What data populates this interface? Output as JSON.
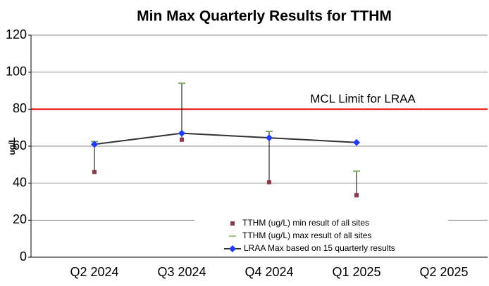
{
  "chart_data": {
    "type": "line",
    "title": "Min Max Quarterly Results for TTHM",
    "y_label": "ug/L",
    "categories": [
      "Q2 2024",
      "Q3 2024",
      "Q4 2024",
      "Q1 2025",
      "Q2 2025"
    ],
    "series": [
      {
        "name": "TTHM (ug/L) min result of all sites",
        "color": "#8b3a4a",
        "values": [
          46,
          63.5,
          40.5,
          33.5,
          null
        ]
      },
      {
        "name": "TTHM (ug/L) max result of all sites",
        "color": "#7aa860",
        "values": [
          62.5,
          94,
          68,
          46.5,
          null
        ]
      },
      {
        "name": "LRAA Max based on 15 quarterly results",
        "color": "#1f3bff",
        "values": [
          61,
          67,
          64.5,
          62,
          null
        ]
      }
    ],
    "reference_line": {
      "text": "MCL Limit for LRAA",
      "value": 80,
      "color": "#e00000"
    },
    "ylim": [
      0,
      120
    ],
    "yticks": [
      0,
      20,
      40,
      60,
      80,
      100,
      120
    ],
    "grid": true
  }
}
